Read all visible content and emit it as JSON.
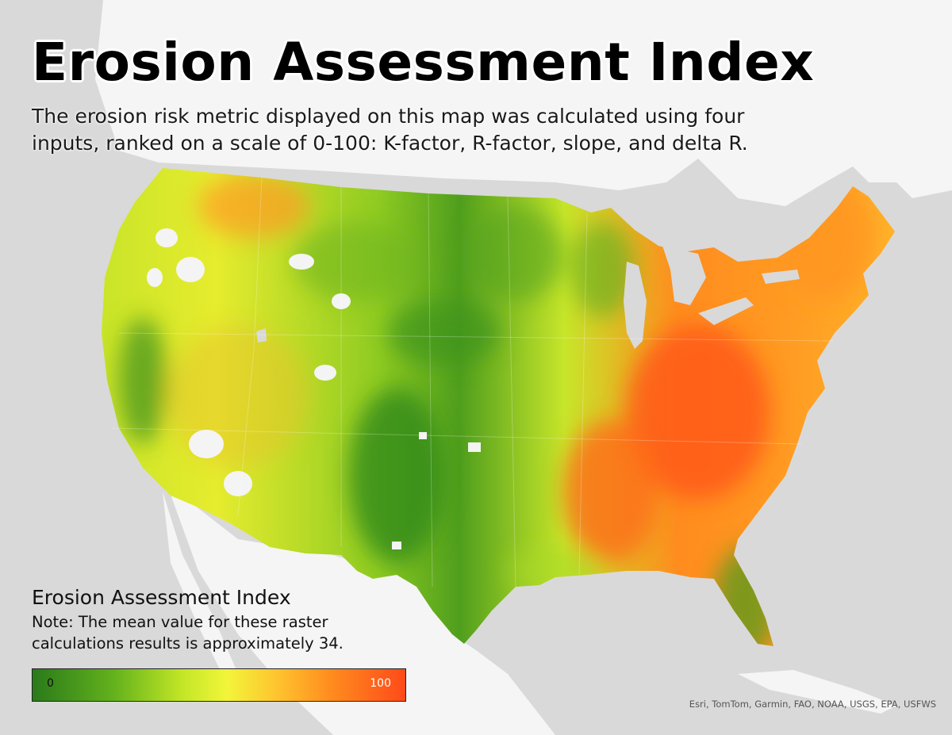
{
  "map": {
    "title": "Erosion Assessment Index",
    "description": "The erosion risk metric displayed on this map was calculated using four inputs, ranked on a scale of 0-100: K-factor, R-factor, slope, and delta R.",
    "colors": {
      "land": "#f6f6f6",
      "water": "#d9d9d9",
      "low": "#2a7a1b",
      "mid_low": "#8cc722",
      "mid": "#f2f53a",
      "mid_high": "#ff9a1f",
      "high": "#ff4a1a"
    }
  },
  "legend": {
    "title": "Erosion Assessment Index",
    "note": "Note: The mean value for these raster calculations results is approximately 34.",
    "min_label": "0",
    "max_label": "100",
    "min_value": 0,
    "max_value": 100
  },
  "attribution": "Esri, TomTom, Garmin, FAO, NOAA, USGS, EPA, USFWS"
}
